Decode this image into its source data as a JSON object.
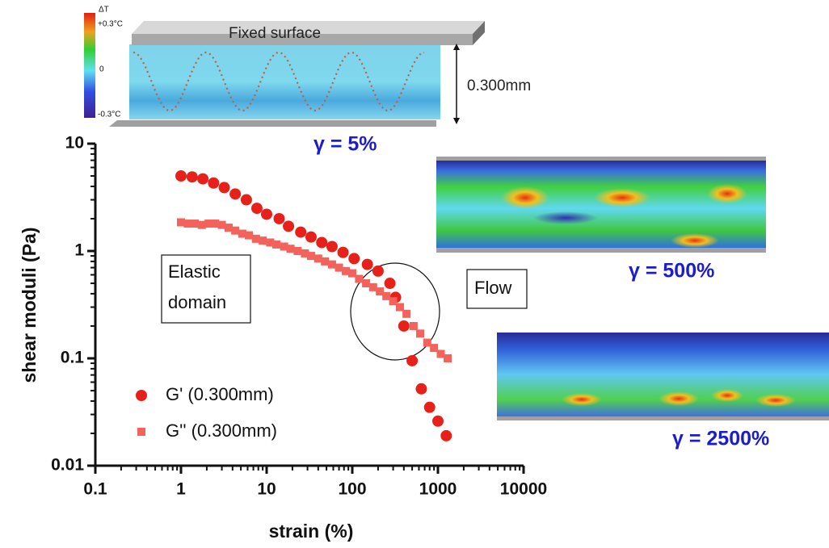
{
  "chart_data": {
    "type": "scatter",
    "xlabel": "strain (%)",
    "ylabel": "shear moduli (Pa)",
    "log_x": true,
    "log_y": true,
    "xlim": [
      0.1,
      10000
    ],
    "ylim": [
      0.01,
      10
    ],
    "xticks": [
      0.1,
      1,
      10,
      100,
      1000,
      10000
    ],
    "yticks": [
      0.01,
      0.1,
      1,
      10
    ],
    "legend": "lower left",
    "series": [
      {
        "name": "G' (0.300mm)",
        "color": "#e8201a",
        "marker": "circle",
        "x": [
          1,
          1.35,
          1.8,
          2.4,
          3.2,
          4.3,
          5.8,
          7.7,
          10,
          14,
          18,
          25,
          33,
          44,
          58,
          78,
          105,
          150,
          200,
          275,
          320,
          400,
          500,
          640,
          800,
          1000,
          1250
        ],
        "values": [
          5.0,
          4.9,
          4.7,
          4.3,
          3.9,
          3.4,
          3.0,
          2.5,
          2.2,
          2.0,
          1.7,
          1.5,
          1.35,
          1.2,
          1.1,
          0.97,
          0.85,
          0.75,
          0.65,
          0.5,
          0.37,
          0.2,
          0.095,
          0.052,
          0.035,
          0.026,
          0.019
        ]
      },
      {
        "name": "G'' (0.300mm)",
        "color": "#f4625c",
        "marker": "square",
        "x": [
          1,
          1.2,
          1.45,
          1.75,
          2.1,
          2.5,
          3.0,
          3.6,
          4.3,
          5.2,
          6.2,
          7.5,
          9,
          11,
          13,
          16,
          19,
          23,
          28,
          33,
          40,
          48,
          58,
          70,
          84,
          100,
          120,
          145,
          175,
          210,
          250,
          300,
          360,
          430,
          520,
          620,
          750,
          900,
          1080,
          1300
        ],
        "values": [
          1.85,
          1.8,
          1.8,
          1.75,
          1.8,
          1.8,
          1.75,
          1.65,
          1.55,
          1.45,
          1.4,
          1.3,
          1.25,
          1.2,
          1.15,
          1.1,
          1.05,
          1.0,
          0.95,
          0.9,
          0.85,
          0.8,
          0.75,
          0.7,
          0.65,
          0.62,
          0.55,
          0.5,
          0.46,
          0.42,
          0.38,
          0.34,
          0.3,
          0.26,
          0.2,
          0.17,
          0.14,
          0.125,
          0.11,
          0.1
        ]
      }
    ],
    "annotations": [
      [
        "Elastic",
        "domain"
      ],
      [
        "Flow"
      ]
    ],
    "strain_labels": [
      "γ = 5%",
      "γ = 500%",
      "γ = 2500%"
    ],
    "inset": {
      "colorbar_title": "ΔT",
      "colorbar_labels": [
        "+0.3°C",
        "0",
        "-0.3°C"
      ],
      "surface_label": "Fixed surface",
      "gap_label": "0.300mm"
    }
  }
}
